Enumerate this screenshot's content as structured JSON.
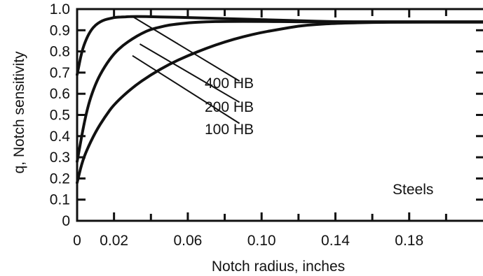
{
  "chart_data": {
    "type": "line",
    "title": "",
    "xlabel": "Notch radius, inches",
    "ylabel": "q, Notch sensitivity",
    "xlim": [
      0,
      0.22
    ],
    "ylim": [
      0,
      1.0
    ],
    "x_ticks": [
      0,
      0.02,
      0.06,
      0.1,
      0.14,
      0.18
    ],
    "x_tick_labels": [
      "0",
      "0.02",
      "0.06",
      "0.10",
      "0.14",
      "0.18"
    ],
    "y_ticks": [
      0,
      0.1,
      0.2,
      0.3,
      0.4,
      0.5,
      0.6,
      0.7,
      0.8,
      0.9,
      1.0
    ],
    "y_tick_labels": [
      "0",
      "0.1",
      "0.2",
      "0.3",
      "0.4",
      "0.5",
      "0.6",
      "0.7",
      "0.8",
      "0.9",
      "1.0"
    ],
    "grid": false,
    "annotation": "Steels",
    "series": [
      {
        "name": "400 HB",
        "x": [
          0,
          0.0025,
          0.005,
          0.0075,
          0.01,
          0.0125,
          0.015,
          0.0175,
          0.02,
          0.0225,
          0.025,
          0.0275,
          0.03,
          0.035,
          0.04,
          0.05,
          0.06,
          0.08,
          0.1,
          0.12,
          0.14,
          0.16,
          0.18,
          0.2,
          0.22
        ],
        "values": [
          0.69,
          0.8,
          0.86,
          0.9,
          0.925,
          0.94,
          0.95,
          0.955,
          0.96,
          0.962,
          0.963,
          0.964,
          0.965,
          0.965,
          0.964,
          0.962,
          0.96,
          0.955,
          0.95,
          0.945,
          0.94,
          0.94,
          0.94,
          0.94,
          0.94
        ]
      },
      {
        "name": "200 HB",
        "x": [
          0,
          0.005,
          0.01,
          0.015,
          0.02,
          0.025,
          0.03,
          0.035,
          0.04,
          0.045,
          0.05,
          0.055,
          0.06,
          0.07,
          0.08,
          0.1,
          0.12,
          0.14,
          0.16,
          0.18,
          0.2,
          0.22
        ],
        "values": [
          0.28,
          0.52,
          0.65,
          0.73,
          0.79,
          0.83,
          0.86,
          0.885,
          0.905,
          0.915,
          0.925,
          0.93,
          0.935,
          0.94,
          0.942,
          0.942,
          0.94,
          0.94,
          0.94,
          0.94,
          0.94,
          0.94
        ]
      },
      {
        "name": "100 HB",
        "x": [
          0,
          0.0025,
          0.005,
          0.01,
          0.015,
          0.02,
          0.03,
          0.04,
          0.05,
          0.06,
          0.07,
          0.08,
          0.09,
          0.1,
          0.11,
          0.12,
          0.13,
          0.14,
          0.16,
          0.18,
          0.2,
          0.22
        ],
        "values": [
          0.18,
          0.27,
          0.33,
          0.42,
          0.49,
          0.55,
          0.63,
          0.69,
          0.74,
          0.78,
          0.815,
          0.845,
          0.87,
          0.89,
          0.905,
          0.92,
          0.928,
          0.933,
          0.937,
          0.938,
          0.938,
          0.938
        ]
      }
    ]
  }
}
